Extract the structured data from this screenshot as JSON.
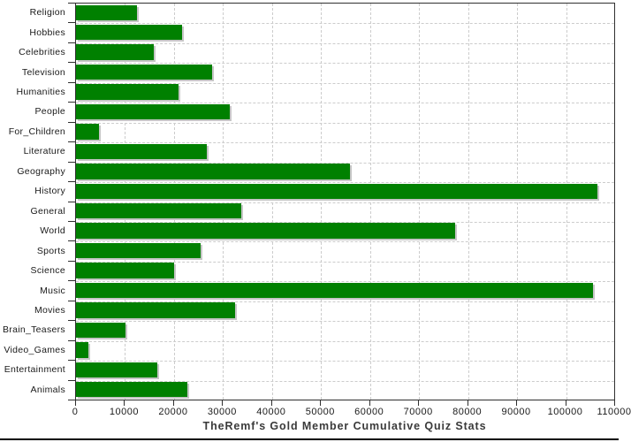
{
  "chart_data": {
    "type": "bar",
    "orientation": "horizontal",
    "title": "TheRemf's Gold Member Cumulative Quiz Stats",
    "categories": [
      "Religion",
      "Hobbies",
      "Celebrities",
      "Television",
      "Humanities",
      "People",
      "For_Children",
      "Literature",
      "Geography",
      "History",
      "General",
      "World",
      "Sports",
      "Science",
      "Music",
      "Movies",
      "Brain_Teasers",
      "Video_Games",
      "Entertainment",
      "Animals"
    ],
    "values": [
      12500,
      21700,
      15800,
      27700,
      21000,
      31300,
      4600,
      26600,
      55900,
      106400,
      33700,
      77400,
      25400,
      20100,
      105500,
      32500,
      10100,
      2500,
      16600,
      22800
    ],
    "xlabel": "",
    "ylabel": "",
    "xlim": [
      0,
      110000
    ],
    "x_tick_labels": [
      "0",
      "10000",
      "20000",
      "30000",
      "40000",
      "50000",
      "60000",
      "70000",
      "80000",
      "90000",
      "100000",
      "110000"
    ],
    "x_tick_values": [
      0,
      10000,
      20000,
      30000,
      40000,
      50000,
      60000,
      70000,
      80000,
      90000,
      100000,
      110000
    ],
    "grid": "dashed-both-axes",
    "legend": "none",
    "bar_color": "#008000",
    "bar_shadow_color": "#c6c6c6",
    "grid_color": "#cccccc",
    "axis_color": "#2f2f2f",
    "title_color": "#3a3a3a"
  }
}
